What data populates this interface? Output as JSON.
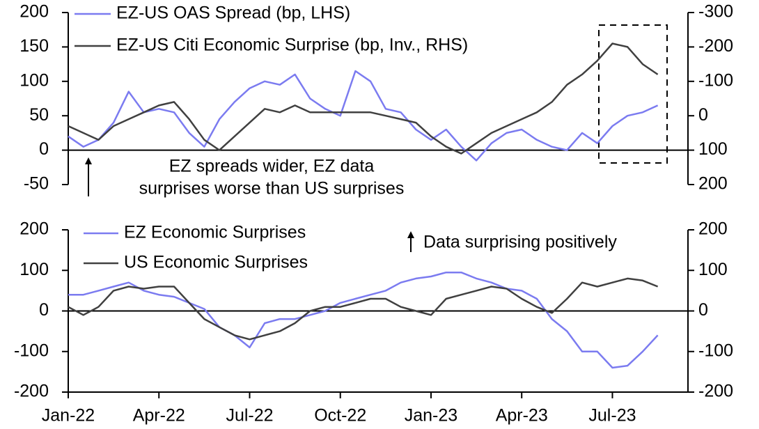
{
  "chart_data": [
    {
      "type": "line",
      "legend": "upper left",
      "ylim": [
        -50,
        200
      ],
      "yticks": [
        -50,
        0,
        50,
        100,
        150,
        200
      ],
      "y2lim": [
        200,
        -300
      ],
      "y2ticks": [
        200,
        100,
        0,
        -100,
        -200,
        -300
      ],
      "annotations": [
        "EZ spreads wider, EZ data",
        "surprises worse than US surprises"
      ],
      "series": [
        {
          "name": "EZ-US OAS Spread (bp, LHS)",
          "color": "#7b7bf0",
          "axis": "y",
          "values": [
            20,
            5,
            15,
            40,
            85,
            55,
            60,
            55,
            25,
            5,
            45,
            70,
            90,
            100,
            95,
            110,
            75,
            60,
            50,
            115,
            100,
            60,
            55,
            30,
            15,
            30,
            5,
            -15,
            10,
            25,
            30,
            15,
            5,
            0,
            25,
            10,
            35,
            50,
            55,
            65
          ]
        },
        {
          "name": "EZ-US Citi Economic Surprise (bp, Inv., RHS)",
          "color": "#404040",
          "axis": "y2",
          "values": [
            30,
            50,
            70,
            30,
            10,
            -10,
            -30,
            -40,
            10,
            70,
            100,
            60,
            20,
            -20,
            -10,
            -30,
            -10,
            -10,
            -10,
            -10,
            -10,
            0,
            10,
            20,
            60,
            90,
            110,
            80,
            50,
            30,
            10,
            -10,
            -40,
            -90,
            -120,
            -160,
            -210,
            -200,
            -150,
            -120
          ]
        }
      ]
    },
    {
      "type": "line",
      "legend": "upper left",
      "categories": [
        "Jan-22",
        null,
        null,
        null,
        null,
        null,
        "Apr-22",
        null,
        null,
        null,
        null,
        null,
        "Jul-22",
        null,
        null,
        null,
        null,
        null,
        "Oct-22",
        null,
        null,
        null,
        null,
        null,
        "Jan-23",
        null,
        null,
        null,
        null,
        null,
        "Apr-23",
        null,
        null,
        null,
        null,
        null,
        "Jul-23",
        null,
        null,
        null
      ],
      "ylim": [
        -200,
        200
      ],
      "yticks": [
        -200,
        -100,
        0,
        100,
        200
      ],
      "y2lim": [
        -200,
        200
      ],
      "y2ticks": [
        -200,
        -100,
        0,
        100,
        200
      ],
      "annotations": [
        "Data surprising positively"
      ],
      "series": [
        {
          "name": "EZ Economic Surprises",
          "color": "#7b7bf0",
          "axis": "y",
          "values": [
            40,
            40,
            50,
            60,
            70,
            50,
            40,
            35,
            20,
            5,
            -40,
            -60,
            -90,
            -30,
            -20,
            -20,
            -10,
            0,
            20,
            30,
            40,
            50,
            70,
            80,
            85,
            95,
            95,
            80,
            70,
            55,
            50,
            30,
            -20,
            -50,
            -100,
            -100,
            -140,
            -135,
            -100,
            -60
          ]
        },
        {
          "name": "US Economic Surprises",
          "color": "#404040",
          "axis": "y",
          "values": [
            10,
            -10,
            10,
            50,
            60,
            55,
            60,
            60,
            20,
            -20,
            -40,
            -60,
            -70,
            -60,
            -50,
            -30,
            0,
            10,
            10,
            20,
            30,
            30,
            10,
            0,
            -10,
            30,
            40,
            50,
            60,
            55,
            30,
            10,
            -5,
            30,
            70,
            60,
            70,
            80,
            75,
            60
          ]
        }
      ]
    }
  ]
}
